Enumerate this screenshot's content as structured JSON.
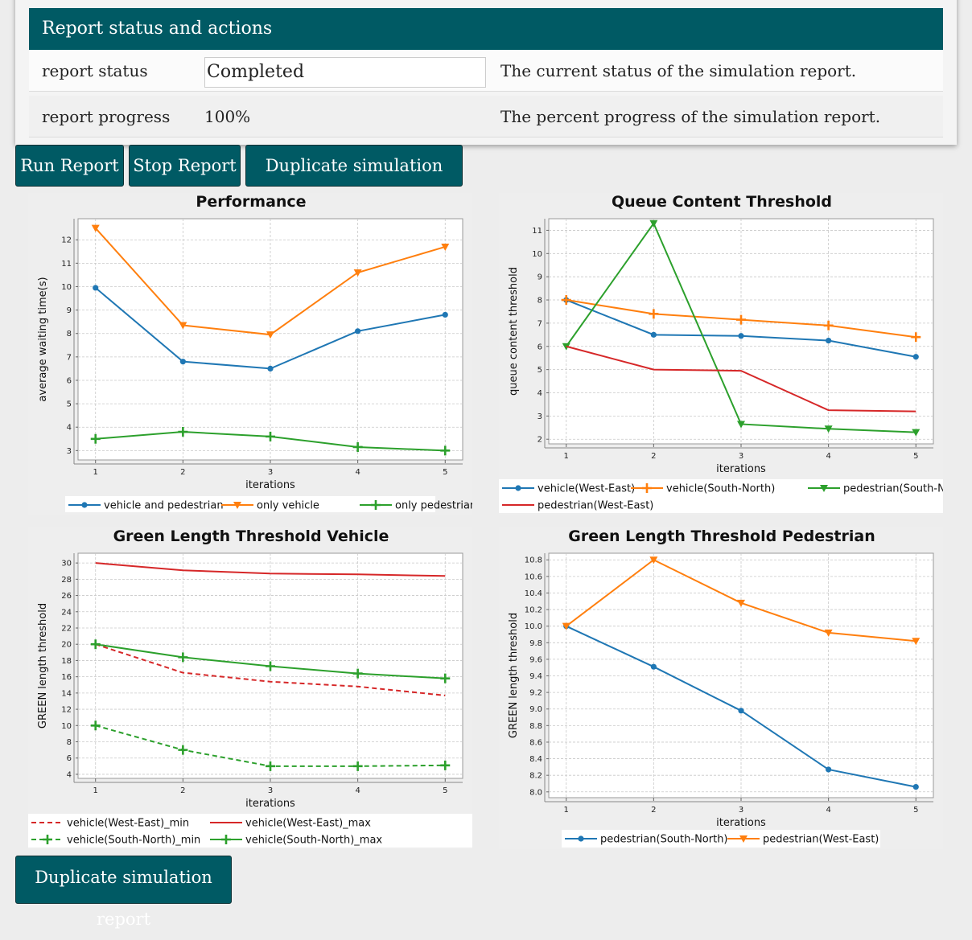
{
  "panel": {
    "title": "Report status and actions",
    "rows": [
      {
        "name": "report status",
        "value": "Completed",
        "description": "The current status of the simulation report."
      },
      {
        "name": "report progress",
        "value": "100%",
        "description": "The percent progress of the simulation report."
      }
    ]
  },
  "buttons": {
    "run": "Run Report",
    "stop": "Stop Report",
    "duplicate": "Duplicate simulation report",
    "duplicate_bottom": "Duplicate simulation report"
  },
  "colors": {
    "blue": "#1f77b4",
    "orange": "#ff7f0e",
    "green": "#2ca02c",
    "red": "#d62728",
    "header": "#005a64"
  },
  "chart_data": [
    {
      "type": "line",
      "title": "Performance",
      "xlabel": "iterations",
      "ylabel": "average waiting time(s)",
      "x": [
        1,
        2,
        3,
        4,
        5
      ],
      "xlim": [
        0.8,
        5.2
      ],
      "ylim": [
        2.6,
        12.9
      ],
      "yticks": [
        3,
        4,
        5,
        6,
        7,
        8,
        9,
        10,
        11,
        12
      ],
      "grid": true,
      "legend_position": "bottom",
      "series": [
        {
          "name": "vehicle and pedestrian",
          "color": "#1f77b4",
          "marker": "circle",
          "dash": false,
          "values": [
            9.95,
            6.8,
            6.5,
            8.1,
            8.8
          ]
        },
        {
          "name": "only vehicle",
          "color": "#ff7f0e",
          "marker": "triangle-down",
          "dash": false,
          "values": [
            12.5,
            8.35,
            7.95,
            10.6,
            11.7
          ]
        },
        {
          "name": "only pedestrian",
          "color": "#2ca02c",
          "marker": "plus",
          "dash": false,
          "values": [
            3.5,
            3.8,
            3.6,
            3.15,
            3.0
          ]
        }
      ]
    },
    {
      "type": "line",
      "title": "Queue Content Threshold",
      "xlabel": "iterations",
      "ylabel": "queue content threshold",
      "x": [
        1,
        2,
        3,
        4,
        5
      ],
      "xlim": [
        0.8,
        5.2
      ],
      "ylim": [
        1.8,
        11.5
      ],
      "yticks": [
        2,
        3,
        4,
        5,
        6,
        7,
        8,
        9,
        10,
        11
      ],
      "grid": true,
      "legend_position": "bottom",
      "series": [
        {
          "name": "vehicle(West-East)",
          "color": "#1f77b4",
          "marker": "circle",
          "dash": false,
          "values": [
            8.0,
            6.5,
            6.45,
            6.25,
            5.55
          ]
        },
        {
          "name": "vehicle(South-North)",
          "color": "#ff7f0e",
          "marker": "plus",
          "dash": false,
          "values": [
            8.0,
            7.4,
            7.15,
            6.9,
            6.4
          ]
        },
        {
          "name": "pedestrian(South-North)",
          "color": "#2ca02c",
          "marker": "triangle-down",
          "dash": false,
          "values": [
            6.0,
            11.3,
            2.65,
            2.45,
            2.3
          ]
        },
        {
          "name": "pedestrian(West-East)",
          "color": "#d62728",
          "marker": "none",
          "dash": false,
          "values": [
            6.0,
            5.0,
            4.95,
            3.25,
            3.2
          ]
        }
      ]
    },
    {
      "type": "line",
      "title": "Green Length Threshold Vehicle",
      "xlabel": "iterations",
      "ylabel": "GREEN length threshold",
      "x": [
        1,
        2,
        3,
        4,
        5
      ],
      "xlim": [
        0.8,
        5.2
      ],
      "ylim": [
        3.5,
        31.2
      ],
      "yticks": [
        4,
        6,
        8,
        10,
        12,
        14,
        16,
        18,
        20,
        22,
        24,
        26,
        28,
        30
      ],
      "grid": true,
      "legend_position": "bottom",
      "series": [
        {
          "name": "vehicle(West-East)_min",
          "color": "#d62728",
          "marker": "none",
          "dash": true,
          "values": [
            20.0,
            16.5,
            15.4,
            14.8,
            13.7
          ]
        },
        {
          "name": "vehicle(West-East)_max",
          "color": "#d62728",
          "marker": "none",
          "dash": false,
          "values": [
            30.0,
            29.1,
            28.7,
            28.6,
            28.4
          ]
        },
        {
          "name": "vehicle(South-North)_min",
          "color": "#2ca02c",
          "marker": "plus",
          "dash": true,
          "values": [
            10.0,
            7.0,
            5.0,
            5.0,
            5.1
          ]
        },
        {
          "name": "vehicle(South-North)_max",
          "color": "#2ca02c",
          "marker": "plus",
          "dash": false,
          "values": [
            20.0,
            18.4,
            17.3,
            16.4,
            15.8
          ]
        }
      ]
    },
    {
      "type": "line",
      "title": "Green Length Threshold Pedestrian",
      "xlabel": "iterations",
      "ylabel": "GREEN length threshold",
      "x": [
        1,
        2,
        3,
        4,
        5
      ],
      "xlim": [
        0.8,
        5.2
      ],
      "ylim": [
        7.93,
        10.88
      ],
      "yticks": [
        "8.0",
        "8.2",
        "8.4",
        "8.6",
        "8.8",
        "9.0",
        "9.2",
        "9.4",
        "9.6",
        "9.8",
        "10.0",
        "10.2",
        "10.4",
        "10.6",
        "10.8"
      ],
      "grid": true,
      "legend_position": "bottom",
      "series": [
        {
          "name": "pedestrian(South-North)",
          "color": "#1f77b4",
          "marker": "circle",
          "dash": false,
          "values": [
            10.0,
            9.51,
            8.98,
            8.27,
            8.06
          ]
        },
        {
          "name": "pedestrian(West-East)",
          "color": "#ff7f0e",
          "marker": "triangle-down",
          "dash": false,
          "values": [
            10.0,
            10.8,
            10.28,
            9.92,
            9.82
          ]
        }
      ]
    }
  ]
}
